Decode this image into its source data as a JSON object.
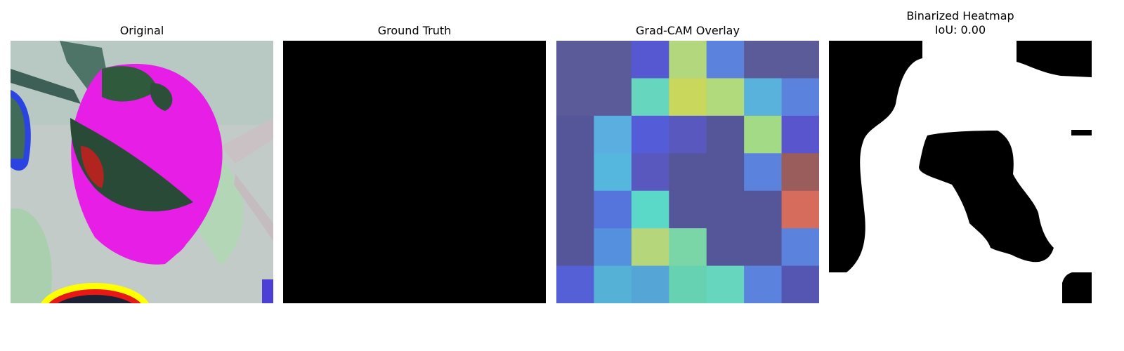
{
  "panels": {
    "original": {
      "title": "Original"
    },
    "ground_truth": {
      "title": "Ground Truth"
    },
    "gradcam": {
      "title": "Grad-CAM Overlay",
      "grid": [
        [
          "#5b5b9a",
          "#5b5b9a",
          "#5558d0",
          "#b2d77c",
          "#5b82dc",
          "#5b5b9a",
          "#5b5b9a"
        ],
        [
          "#5b5b9a",
          "#5b5b9a",
          "#66d6be",
          "#c9d75c",
          "#b0da7c",
          "#58b2dc",
          "#5b82dc"
        ],
        [
          "#55559a",
          "#5aaee0",
          "#555cd8",
          "#5858be",
          "#55559a",
          "#a3da86",
          "#5855cd"
        ],
        [
          "#55559a",
          "#55b6de",
          "#5858be",
          "#55559a",
          "#55559a",
          "#5b82dc",
          "#9b5c5c"
        ],
        [
          "#55559a",
          "#5575dc",
          "#5ad8c8",
          "#55559a",
          "#55559a",
          "#55559a",
          "#d66c5c"
        ],
        [
          "#55559a",
          "#5590de",
          "#b6d67c",
          "#7ad6a6",
          "#55559a",
          "#55559a",
          "#5b82dc"
        ],
        [
          "#5560d6",
          "#55b2d6",
          "#55a6d6",
          "#66d2b2",
          "#66d6be",
          "#5b82dc",
          "#5555b2"
        ]
      ]
    },
    "heatmap": {
      "title_line1": "Binarized Heatmap",
      "title_line2": "IoU: 0.00"
    }
  }
}
